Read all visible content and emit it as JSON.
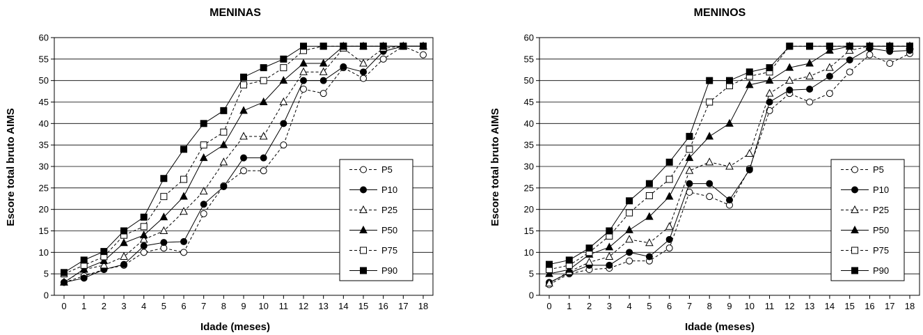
{
  "chart_data": [
    {
      "type": "line",
      "title": "MENINAS",
      "xlabel": "Idade (meses)",
      "ylabel": "Escore total bruto AIMS",
      "xlim": [
        0,
        18
      ],
      "ylim": [
        0,
        60
      ],
      "x": [
        0,
        1,
        2,
        3,
        4,
        5,
        6,
        7,
        8,
        9,
        10,
        11,
        12,
        13,
        14,
        15,
        16,
        17,
        18
      ],
      "yticks": [
        0,
        5,
        10,
        15,
        20,
        25,
        30,
        35,
        40,
        45,
        50,
        55,
        60
      ],
      "grid": "horizontal",
      "legend_position": "bottom-right",
      "series": [
        {
          "name": "P5",
          "marker": "circle-open",
          "line": "dashed",
          "values": [
            3,
            4.5,
            6,
            7,
            10,
            11,
            10,
            19,
            25.5,
            29,
            29,
            35,
            48,
            47,
            53,
            50.5,
            55,
            58,
            56
          ]
        },
        {
          "name": "P10",
          "marker": "circle-filled",
          "line": "solid",
          "values": [
            3,
            4,
            6,
            7.2,
            11.5,
            12.3,
            12.5,
            21.2,
            25.3,
            32,
            32,
            40,
            50,
            50,
            53.2,
            52,
            56.8,
            58,
            58
          ]
        },
        {
          "name": "P25",
          "marker": "triangle-open",
          "line": "dashed",
          "values": [
            3,
            6,
            7,
            9,
            13,
            15,
            19.5,
            24.2,
            31,
            37,
            37,
            45,
            52,
            52,
            57.5,
            54,
            57.5,
            58,
            58
          ]
        },
        {
          "name": "P50",
          "marker": "triangle-filled",
          "line": "solid",
          "values": [
            3,
            6.1,
            8,
            12.2,
            14,
            18.2,
            23,
            32,
            35,
            43,
            45,
            50,
            54,
            54,
            58,
            58,
            58,
            58,
            58
          ]
        },
        {
          "name": "P75",
          "marker": "square-open",
          "line": "dashed",
          "values": [
            5,
            7,
            9,
            14,
            16,
            23,
            27,
            35,
            38,
            49,
            50,
            53,
            57,
            58,
            58,
            58,
            58,
            58,
            58
          ]
        },
        {
          "name": "P90",
          "marker": "square-filled",
          "line": "solid",
          "values": [
            5.3,
            8.2,
            10.2,
            15,
            18.2,
            27.2,
            34,
            40,
            43,
            50.8,
            53,
            55,
            58,
            58,
            58,
            58,
            58,
            58,
            58
          ]
        }
      ]
    },
    {
      "type": "line",
      "title": "MENINOS",
      "xlabel": "Idade (meses)",
      "ylabel": "Escore total bruto AIMS",
      "xlim": [
        0,
        18
      ],
      "ylim": [
        0,
        60
      ],
      "x": [
        0,
        1,
        2,
        3,
        4,
        5,
        6,
        7,
        8,
        9,
        10,
        11,
        12,
        13,
        14,
        15,
        16,
        17,
        18
      ],
      "yticks": [
        0,
        5,
        10,
        15,
        20,
        25,
        30,
        35,
        40,
        45,
        50,
        55,
        60
      ],
      "grid": "horizontal",
      "legend_position": "bottom-right",
      "series": [
        {
          "name": "P5",
          "marker": "circle-open",
          "line": "dashed",
          "values": [
            2.5,
            5,
            6,
            6.3,
            8,
            8,
            11,
            24,
            23,
            21,
            29.5,
            43,
            47,
            45,
            47,
            52,
            56,
            54,
            56.3
          ]
        },
        {
          "name": "P10",
          "marker": "circle-filled",
          "line": "solid",
          "values": [
            3,
            5.2,
            7,
            7,
            10,
            9,
            13,
            26,
            26,
            22.2,
            29.2,
            45,
            47.8,
            48,
            51,
            54.8,
            57.5,
            56.8,
            57
          ]
        },
        {
          "name": "P25",
          "marker": "triangle-open",
          "line": "dashed",
          "values": [
            2.8,
            5.5,
            7.7,
            9,
            13,
            12.2,
            16,
            29,
            31,
            30,
            33,
            47,
            50,
            51,
            53,
            57,
            58,
            58,
            58
          ]
        },
        {
          "name": "P50",
          "marker": "triangle-filled",
          "line": "solid",
          "values": [
            5,
            6,
            9.5,
            11.2,
            15.2,
            18.3,
            23,
            32,
            37,
            40,
            49,
            50,
            53,
            54,
            57,
            58,
            58,
            58,
            58
          ]
        },
        {
          "name": "P75",
          "marker": "square-open",
          "line": "dashed",
          "values": [
            6,
            7,
            10,
            13.8,
            19.2,
            23.2,
            27,
            34,
            45,
            48.8,
            51,
            52,
            58,
            58,
            58,
            58,
            58,
            58,
            58
          ]
        },
        {
          "name": "P90",
          "marker": "square-filled",
          "line": "solid",
          "values": [
            7.2,
            8.2,
            11,
            15,
            22,
            26,
            31,
            37,
            50,
            50,
            52,
            53,
            58,
            58,
            58,
            58,
            58,
            58,
            58
          ]
        }
      ]
    }
  ]
}
